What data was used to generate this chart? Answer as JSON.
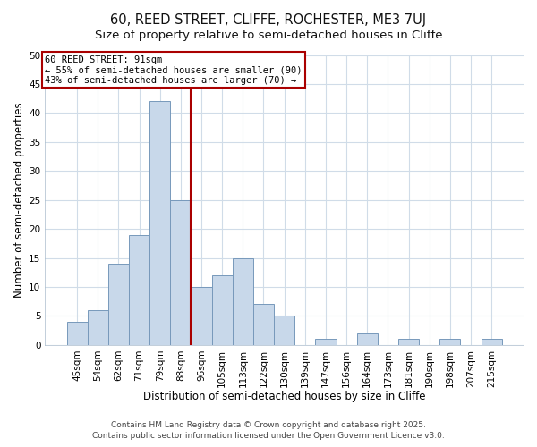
{
  "title": "60, REED STREET, CLIFFE, ROCHESTER, ME3 7UJ",
  "subtitle": "Size of property relative to semi-detached houses in Cliffe",
  "xlabel": "Distribution of semi-detached houses by size in Cliffe",
  "ylabel": "Number of semi-detached properties",
  "bar_labels": [
    "45sqm",
    "54sqm",
    "62sqm",
    "71sqm",
    "79sqm",
    "88sqm",
    "96sqm",
    "105sqm",
    "113sqm",
    "122sqm",
    "130sqm",
    "139sqm",
    "147sqm",
    "156sqm",
    "164sqm",
    "173sqm",
    "181sqm",
    "190sqm",
    "198sqm",
    "207sqm",
    "215sqm"
  ],
  "bar_values": [
    4,
    6,
    14,
    19,
    42,
    25,
    10,
    12,
    15,
    7,
    5,
    0,
    1,
    0,
    2,
    0,
    1,
    0,
    1,
    0,
    1
  ],
  "bar_color": "#c8d8ea",
  "bar_edge_color": "#7799bb",
  "vline_color": "#aa0000",
  "vline_x": 5.5,
  "annotation_title": "60 REED STREET: 91sqm",
  "annotation_line1": "← 55% of semi-detached houses are smaller (90)",
  "annotation_line2": "43% of semi-detached houses are larger (70) →",
  "annotation_box_color": "#ffffff",
  "annotation_box_edge": "#aa0000",
  "ylim": [
    0,
    50
  ],
  "yticks": [
    0,
    5,
    10,
    15,
    20,
    25,
    30,
    35,
    40,
    45,
    50
  ],
  "plot_bg_color": "#ffffff",
  "fig_bg_color": "#ffffff",
  "grid_color": "#d0dce8",
  "footer1": "Contains HM Land Registry data © Crown copyright and database right 2025.",
  "footer2": "Contains public sector information licensed under the Open Government Licence v3.0.",
  "title_fontsize": 10.5,
  "subtitle_fontsize": 9.5,
  "axis_label_fontsize": 8.5,
  "tick_fontsize": 7.5,
  "annotation_fontsize": 7.5,
  "footer_fontsize": 6.5
}
